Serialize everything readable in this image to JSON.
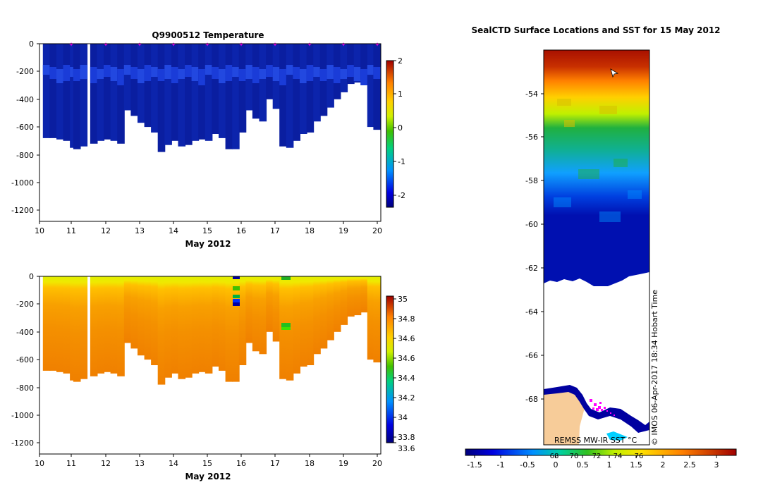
{
  "chart_data": [
    {
      "type": "heatmap",
      "title": "Q9900512  Temperature",
      "xlabel": "May 2012",
      "x_ticks": [
        "10",
        "11",
        "12",
        "13",
        "14",
        "15",
        "16",
        "17",
        "18",
        "19",
        "20"
      ],
      "xlim": [
        10,
        20.1
      ],
      "ylim": [
        -1280,
        0
      ],
      "y_ticks": [
        "0",
        "-200",
        "-400",
        "-600",
        "-800",
        "-1000",
        "-1200"
      ],
      "colorbar_ticks": [
        "2",
        "1",
        "0",
        "-1",
        "-2"
      ],
      "colorbar_range": [
        -2.4,
        2
      ],
      "profile_days": [
        10.1,
        10.3,
        10.5,
        10.7,
        10.9,
        11.0,
        11.2,
        11.5,
        11.7,
        11.9,
        12.1,
        12.3,
        12.5,
        12.7,
        12.9,
        13.1,
        13.3,
        13.5,
        13.7,
        13.9,
        14.1,
        14.3,
        14.5,
        14.7,
        14.9,
        15.1,
        15.3,
        15.5,
        15.7,
        15.9,
        16.1,
        16.3,
        16.5,
        16.7,
        16.9,
        17.1,
        17.3,
        17.5,
        17.7,
        17.9,
        18.1,
        18.3,
        18.5,
        18.7,
        18.9,
        19.1,
        19.3,
        19.5,
        19.7,
        19.9
      ],
      "profile_max_depth": [
        680,
        680,
        690,
        700,
        750,
        760,
        740,
        720,
        700,
        690,
        700,
        720,
        480,
        520,
        570,
        600,
        640,
        780,
        730,
        700,
        740,
        730,
        700,
        690,
        700,
        650,
        680,
        760,
        760,
        640,
        480,
        540,
        560,
        400,
        470,
        740,
        750,
        700,
        650,
        640,
        560,
        520,
        460,
        400,
        350,
        290,
        280,
        260,
        600,
        620
      ],
      "surface_markers": [
        11,
        12,
        13,
        14,
        15,
        16,
        17,
        18,
        19,
        20
      ]
    },
    {
      "type": "heatmap",
      "title": "",
      "xlabel": "May 2012",
      "x_ticks": [
        "10",
        "11",
        "12",
        "13",
        "14",
        "15",
        "16",
        "17",
        "18",
        "19",
        "20"
      ],
      "xlim": [
        10,
        20.1
      ],
      "ylim": [
        -1280,
        0
      ],
      "y_ticks": [
        "0",
        "-200",
        "-400",
        "-600",
        "-800",
        "-1000",
        "-1200"
      ],
      "colorbar_ticks": [
        "35",
        "34.8",
        "34.6",
        "34.6",
        "34.4",
        "34.2",
        "34",
        "33.8",
        "33.6"
      ],
      "colorbar_range": [
        33.55,
        35
      ]
    },
    {
      "type": "heatmap",
      "title": "SealCTD Surface Locations and SST for 15 May 2012",
      "y_ticks": [
        "-54",
        "-56",
        "-58",
        "-60",
        "-62",
        "-64",
        "-66",
        "-68"
      ],
      "ylim": [
        -70,
        -52
      ],
      "colorbar_ticks": [
        "-1.5",
        "-1",
        "-0.5",
        "0",
        "0.5",
        "1",
        "1.5",
        "2",
        "2.5",
        "3"
      ],
      "colorbar_range": [
        -1.8,
        3.5
      ],
      "colorbar_overlay_ticks": [
        "68",
        "70",
        "72",
        "74",
        "76"
      ],
      "source_label": "REMSS MW-IR SST °C",
      "credit": "© IMOS 06-Apr-2017 18:34 Hobart Time"
    }
  ]
}
